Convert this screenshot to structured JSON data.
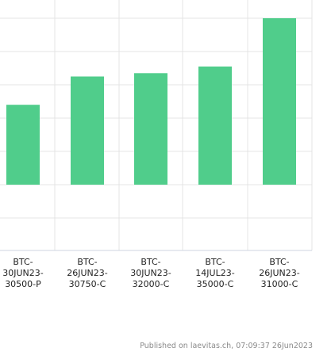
{
  "chart_data": {
    "type": "bar",
    "categories": [
      "BTC-30JUN23-30500-P",
      "BTC-26JUN23-30750-C",
      "BTC-30JUN23-32000-C",
      "BTC-14JUL23-35000-C",
      "BTC-26JUN23-31000-C"
    ],
    "category_label_lines": [
      [
        "BTC-",
        "30JUN23-",
        "30500-P"
      ],
      [
        "BTC-",
        "26JUN23-",
        "30750-C"
      ],
      [
        "BTC-",
        "30JUN23-",
        "32000-C"
      ],
      [
        "BTC-",
        "14JUL23-",
        "35000-C"
      ],
      [
        "BTC-",
        "26JUN23-",
        "31000-C"
      ]
    ],
    "series": [
      {
        "values": [
          2.4,
          3.25,
          3.35,
          3.55,
          5.0
        ]
      }
    ],
    "ylim": [
      -2.0,
      5.5
    ],
    "grid": true,
    "bar_color": "#50cd8b",
    "grid_color": "#e4e4e4",
    "title": "",
    "xlabel": "",
    "ylabel": ""
  },
  "footer": {
    "text": "Published on laevitas.ch, 07:09:37 26Jun2023"
  }
}
